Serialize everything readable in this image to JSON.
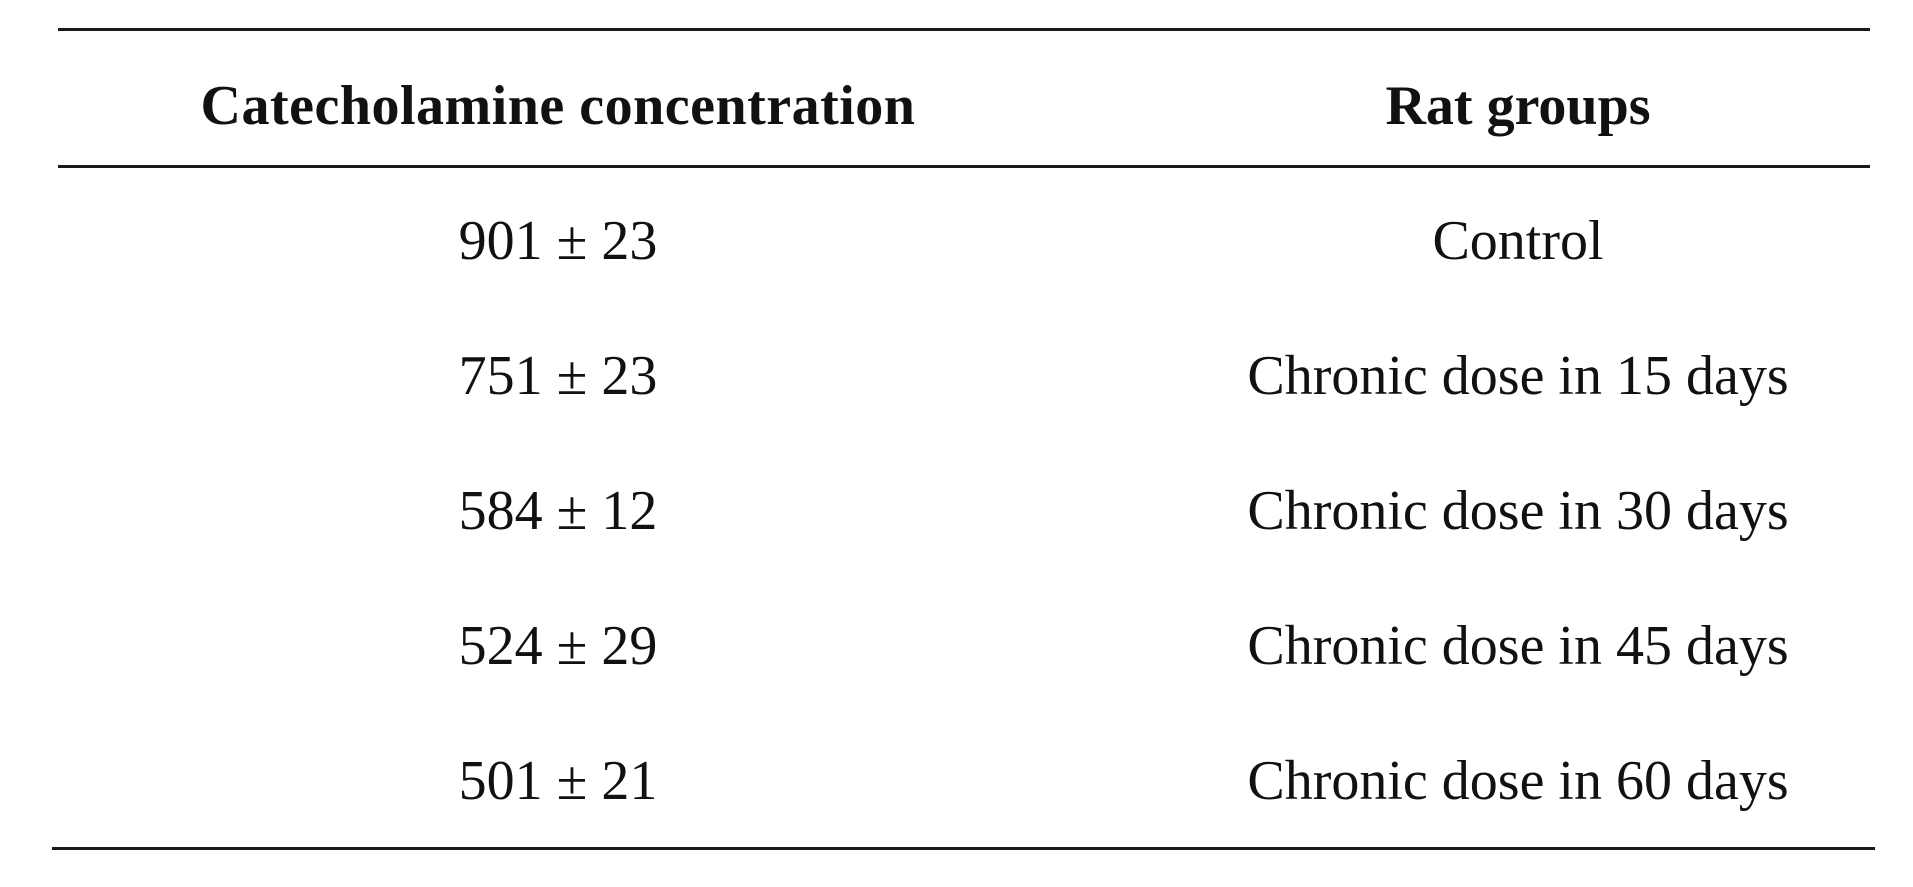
{
  "table": {
    "headers": [
      "Catecholamine concentration",
      "Rat groups"
    ],
    "rows": [
      {
        "concentration": "901 ± 23",
        "group": "Control"
      },
      {
        "concentration": "751 ± 23",
        "group": "Chronic dose in 15 days"
      },
      {
        "concentration": "584 ± 12",
        "group": "Chronic dose in 30 days"
      },
      {
        "concentration": "524 ± 29",
        "group": "Chronic dose in 45 days"
      },
      {
        "concentration": "501 ± 21",
        "group": "Chronic dose in 60 days"
      }
    ]
  }
}
